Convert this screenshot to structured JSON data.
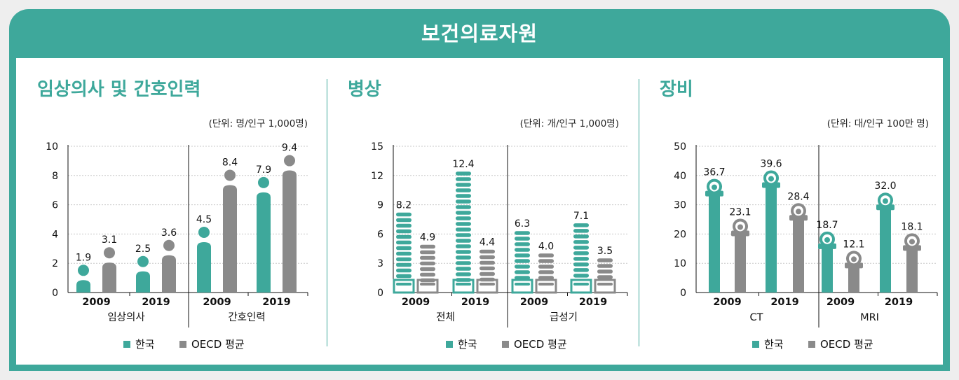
{
  "header": {
    "title": "보건의료자원"
  },
  "colors": {
    "korea": "#3ea89b",
    "oecd": "#8a8a8a",
    "accent": "#3ea89b"
  },
  "legend": {
    "korea": "한국",
    "oecd": "OECD 평균"
  },
  "panels": [
    {
      "title": "임상의사 및 간호인력",
      "unit": "(단위: 명/인구 1,000명)"
    },
    {
      "title": "병상",
      "unit": "(단위: 개/인구 1,000명)"
    },
    {
      "title": "장비",
      "unit": "(단위: 대/인구 100만 명)"
    }
  ],
  "chart_data": [
    {
      "type": "bar",
      "title": "임상의사 및 간호인력",
      "unit": "(단위: 명/인구 1,000명)",
      "style": "person",
      "ylim": [
        0,
        10
      ],
      "yticks": [
        "0",
        "2",
        "4",
        "6",
        "8",
        "10"
      ],
      "groups": [
        {
          "label": "임상의사",
          "categories": [
            "2009",
            "2019"
          ],
          "korea": [
            1.9,
            2.5
          ],
          "oecd": [
            3.1,
            3.6
          ],
          "korea_labels": [
            "1.9",
            "2.5"
          ],
          "oecd_labels": [
            "3.1",
            "3.6"
          ]
        },
        {
          "label": "간호인력",
          "categories": [
            "2009",
            "2019"
          ],
          "korea": [
            4.5,
            7.9
          ],
          "oecd": [
            8.4,
            9.4
          ],
          "korea_labels": [
            "4.5",
            "7.9"
          ],
          "oecd_labels": [
            "8.4",
            "9.4"
          ]
        }
      ],
      "legend": [
        "한국",
        "OECD 평균"
      ]
    },
    {
      "type": "bar",
      "title": "병상",
      "unit": "(단위: 개/인구 1,000명)",
      "style": "bed",
      "ylim": [
        0,
        15
      ],
      "yticks": [
        "0",
        "3",
        "6",
        "9",
        "12",
        "15"
      ],
      "groups": [
        {
          "label": "전체",
          "categories": [
            "2009",
            "2019"
          ],
          "korea": [
            8.2,
            12.4
          ],
          "oecd": [
            4.9,
            4.4
          ],
          "korea_labels": [
            "8.2",
            "12.4"
          ],
          "oecd_labels": [
            "4.9",
            "4.4"
          ]
        },
        {
          "label": "급성기",
          "categories": [
            "2009",
            "2019"
          ],
          "korea": [
            6.3,
            7.1
          ],
          "oecd": [
            4.0,
            3.5
          ],
          "korea_labels": [
            "6.3",
            "7.1"
          ],
          "oecd_labels": [
            "4.0",
            "3.5"
          ]
        }
      ],
      "legend": [
        "한국",
        "OECD 평균"
      ]
    },
    {
      "type": "bar",
      "title": "장비",
      "unit": "(단위: 대/인구 100만 명)",
      "style": "scanner",
      "ylim": [
        0,
        50
      ],
      "yticks": [
        "0",
        "10",
        "20",
        "30",
        "40",
        "50"
      ],
      "groups": [
        {
          "label": "CT",
          "categories": [
            "2009",
            "2019"
          ],
          "korea": [
            36.7,
            39.6
          ],
          "oecd": [
            23.1,
            28.4
          ],
          "korea_labels": [
            "36.7",
            "39.6"
          ],
          "oecd_labels": [
            "23.1",
            "28.4"
          ]
        },
        {
          "label": "MRI",
          "categories": [
            "2009",
            "2019"
          ],
          "korea": [
            18.7,
            32.0
          ],
          "oecd": [
            12.1,
            18.1
          ],
          "korea_labels": [
            "18.7",
            "32.0"
          ],
          "oecd_labels": [
            "12.1",
            "18.1"
          ]
        }
      ],
      "legend": [
        "한국",
        "OECD 평균"
      ]
    }
  ]
}
